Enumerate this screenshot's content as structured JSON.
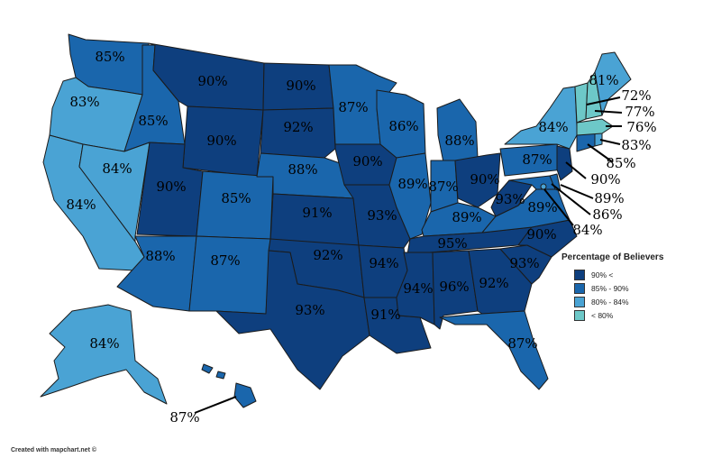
{
  "colors": {
    "tier1": "#0e3f7e",
    "tier2": "#1a66ac",
    "tier3": "#4aa3d4",
    "tier4": "#6dc8c8"
  },
  "legend": {
    "title": "Percentage of Believers",
    "items": [
      {
        "label": "90% <",
        "tier": "tier1"
      },
      {
        "label": "85% - 90%",
        "tier": "tier2"
      },
      {
        "label": "80% - 84%",
        "tier": "tier3"
      },
      {
        "label": "< 80%",
        "tier": "tier4"
      }
    ]
  },
  "credit": "Created with mapchart.net ©",
  "states": {
    "WA": "85%",
    "OR": "83%",
    "CA": "84%",
    "ID": "85%",
    "NV": "84%",
    "MT": "90%",
    "WY": "90%",
    "UT": "90%",
    "AZ": "88%",
    "CO": "85%",
    "NM": "87%",
    "ND": "90%",
    "SD": "92%",
    "NE": "88%",
    "KS": "91%",
    "OK": "92%",
    "TX": "93%",
    "MN": "87%",
    "IA": "90%",
    "MO": "93%",
    "AR": "94%",
    "LA": "91%",
    "WI": "86%",
    "IL": "89%",
    "MI": "88%",
    "IN": "87%",
    "OH": "90%",
    "KY": "89%",
    "TN": "95%",
    "MS": "94%",
    "AL": "96%",
    "GA": "92%",
    "FL": "87%",
    "SC": "93%",
    "NC": "90%",
    "VA": "89%",
    "WV": "93%",
    "PA": "87%",
    "NY": "84%",
    "ME": "81%",
    "VT": "72%",
    "NH": "77%",
    "MA": "76%",
    "RI": "83%",
    "CT": "85%",
    "NJ": "90%",
    "DE": "89%",
    "MD": "86%",
    "DC": "84%",
    "AK": "84%",
    "HI": "87%"
  }
}
